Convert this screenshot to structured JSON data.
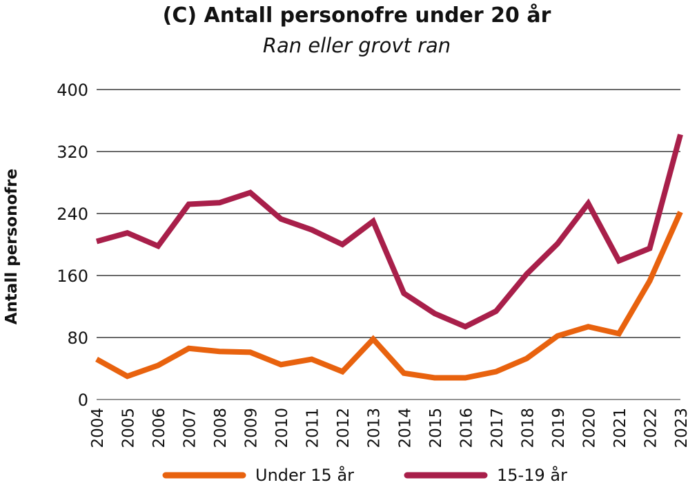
{
  "chart_data": {
    "type": "line",
    "title": "(C) Antall personofre under 20 år",
    "subtitle": "Ran eller grovt ran",
    "ylabel": "Antall personofre",
    "xlabel": "",
    "ylim": [
      0,
      400
    ],
    "yticks": [
      0,
      80,
      160,
      240,
      320,
      400
    ],
    "grid": true,
    "legend_position": "bottom",
    "x": [
      "2004",
      "2005",
      "2006",
      "2007",
      "2008",
      "2009",
      "2010",
      "2011",
      "2012",
      "2013",
      "2014",
      "2015",
      "2016",
      "2017",
      "2018",
      "2019",
      "2020",
      "2021",
      "2022",
      "2023"
    ],
    "series": [
      {
        "name": "Under 15 år",
        "color": "#e8620e",
        "values": [
          52,
          30,
          44,
          66,
          62,
          61,
          45,
          52,
          36,
          78,
          34,
          28,
          28,
          36,
          53,
          82,
          94,
          85,
          153,
          242
        ]
      },
      {
        "name": "15-19 år",
        "color": "#a81f4a",
        "values": [
          204,
          215,
          198,
          252,
          254,
          267,
          233,
          219,
          200,
          230,
          137,
          111,
          94,
          114,
          162,
          201,
          253,
          179,
          195,
          342
        ]
      }
    ]
  }
}
